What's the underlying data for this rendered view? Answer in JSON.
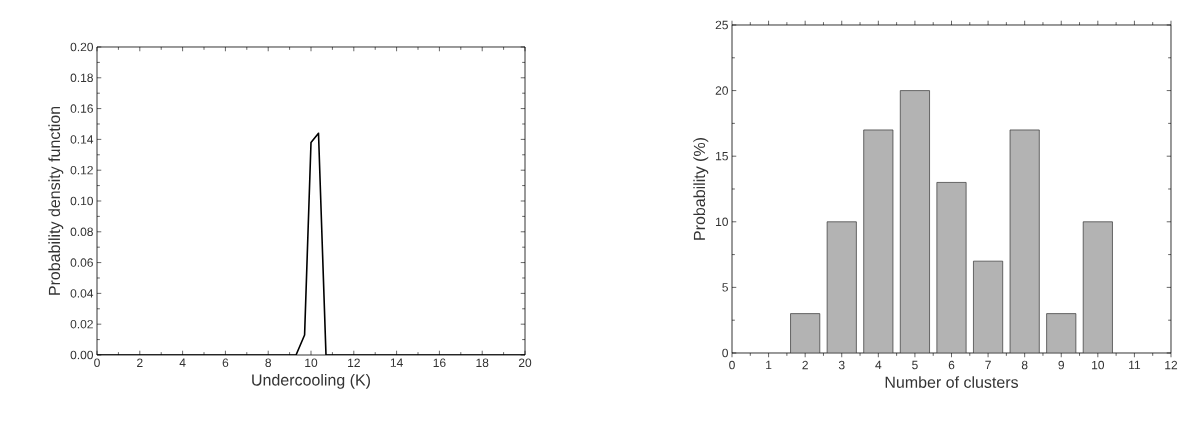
{
  "chart_data": [
    {
      "type": "line",
      "xlabel": "Undercooling (K)",
      "ylabel": "Probability density function",
      "x": [
        0,
        9.3,
        9.7,
        10.0,
        10.35,
        10.7,
        20
      ],
      "series": [
        {
          "color": "#000000",
          "values": [
            0,
            0,
            0.013,
            0.138,
            0.144,
            0,
            0
          ]
        }
      ],
      "xlim": [
        0,
        20
      ],
      "ylim": [
        0,
        0.2
      ],
      "xticks": [
        0,
        2,
        4,
        6,
        8,
        10,
        12,
        14,
        16,
        18,
        20
      ],
      "yticks": [
        {
          "value": 0,
          "label": "0.00"
        },
        {
          "value": 0.02,
          "label": "0.02"
        },
        {
          "value": 0.04,
          "label": "0.04"
        },
        {
          "value": 0.06,
          "label": "0.06"
        },
        {
          "value": 0.08,
          "label": "0.08"
        },
        {
          "value": 0.1,
          "label": "0.10"
        },
        {
          "value": 0.12,
          "label": "0.12"
        },
        {
          "value": 0.14,
          "label": "0.14"
        },
        {
          "value": 0.16,
          "label": "0.16"
        },
        {
          "value": 0.18,
          "label": "0.18"
        },
        {
          "value": 0.2,
          "label": "0.20"
        }
      ]
    },
    {
      "type": "bar",
      "xlabel": "Number of clusters",
      "ylabel": "Probability (%)",
      "x": [
        2,
        3,
        4,
        5,
        6,
        7,
        8,
        9,
        10
      ],
      "series": [
        {
          "color": "#b3b3b3",
          "values": [
            3,
            10,
            17,
            20,
            13,
            7,
            17,
            3,
            10
          ]
        }
      ],
      "xlim": [
        0,
        12
      ],
      "ylim": [
        0,
        25
      ],
      "xticks": [
        0,
        1,
        2,
        3,
        4,
        5,
        6,
        7,
        8,
        9,
        10,
        11,
        12
      ],
      "yticks": [
        0,
        5,
        10,
        15,
        20,
        25
      ]
    }
  ]
}
